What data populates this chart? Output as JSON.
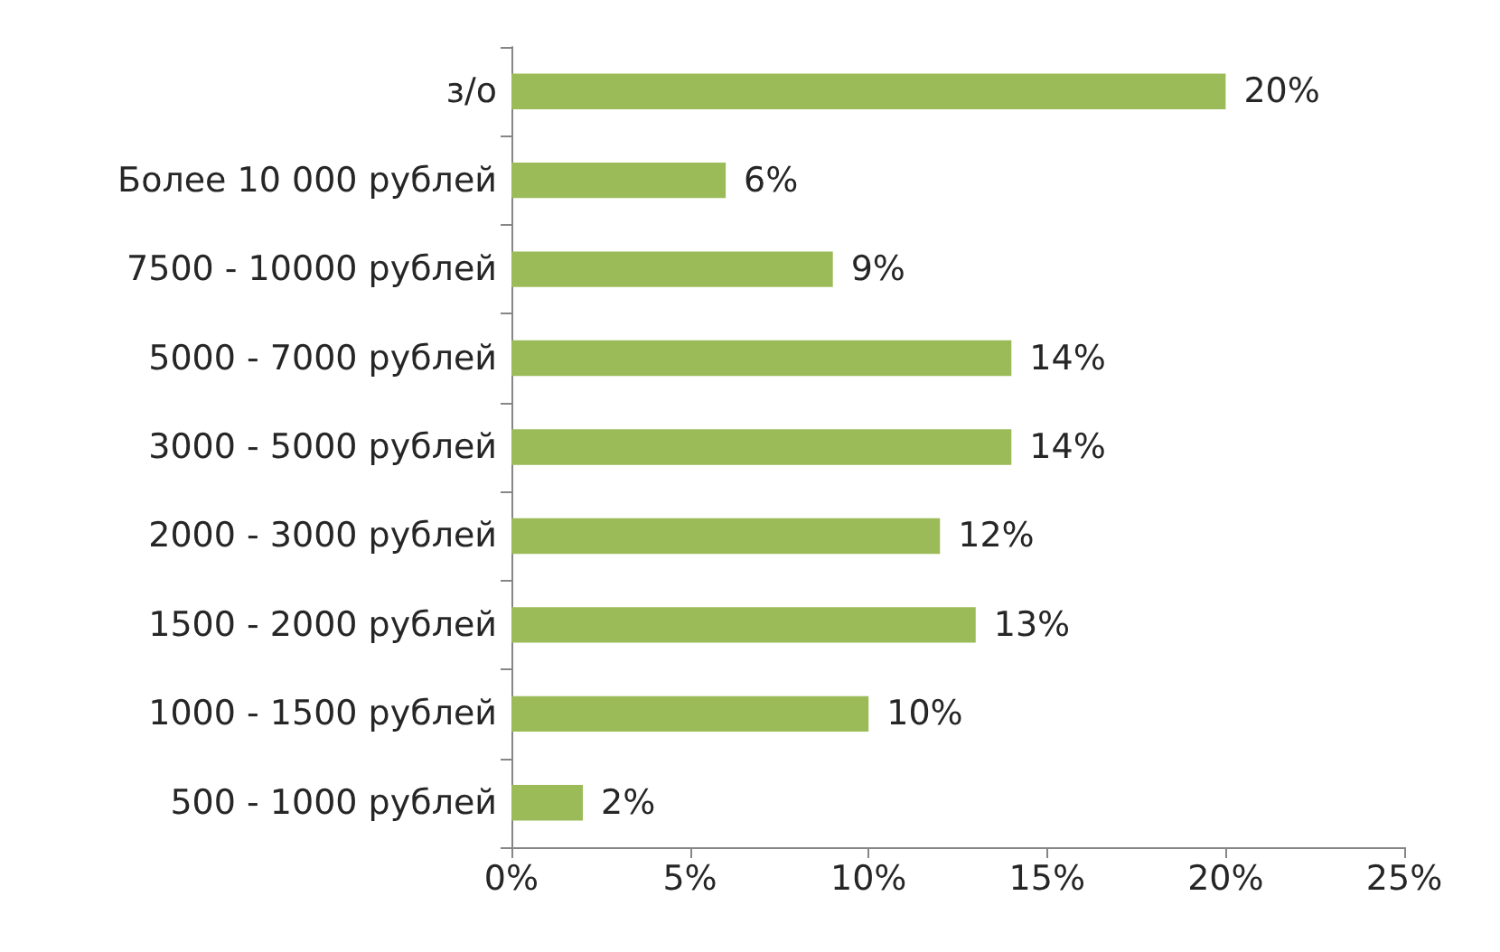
{
  "chart_data": {
    "type": "bar",
    "orientation": "horizontal",
    "categories": [
      "з/о",
      "Более 10 000 рублей",
      "7500 - 10000 рублей",
      "5000 - 7000 рублей",
      "3000 - 5000 рублей",
      "2000 - 3000 рублей",
      "1500 - 2000 рублей",
      "1000 - 1500 рублей",
      "500 - 1000 рублей"
    ],
    "values": [
      20,
      6,
      9,
      14,
      14,
      12,
      13,
      10,
      2
    ],
    "value_labels": [
      "20%",
      "6%",
      "9%",
      "14%",
      "14%",
      "12%",
      "13%",
      "10%",
      "2%"
    ],
    "color": "#9bbb59",
    "xlim": [
      0,
      25
    ],
    "xticks": [
      {
        "value": 0,
        "label": "0%"
      },
      {
        "value": 5,
        "label": "5%"
      },
      {
        "value": 10,
        "label": "10%"
      },
      {
        "value": 15,
        "label": "15%"
      },
      {
        "value": 20,
        "label": "20%"
      },
      {
        "value": 25,
        "label": "25%"
      }
    ],
    "grid": false
  }
}
